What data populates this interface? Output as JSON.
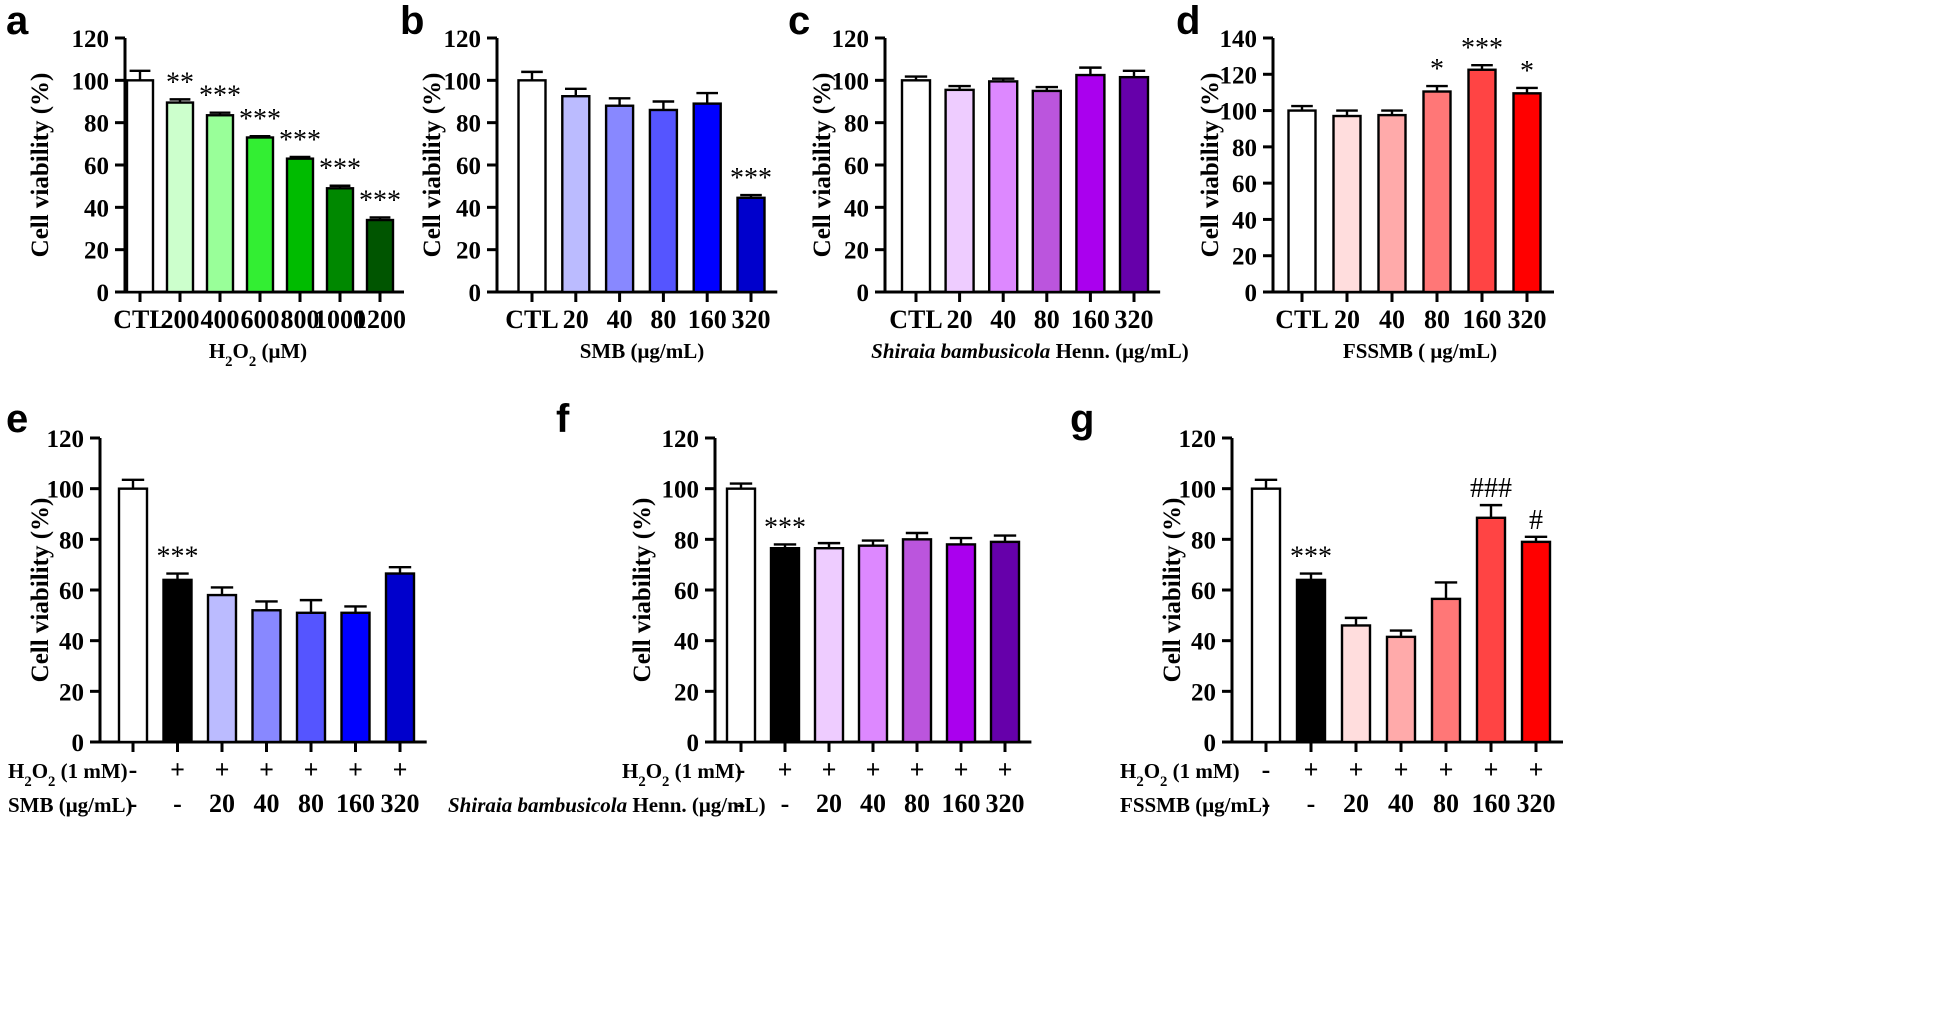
{
  "chart_data": [
    {
      "id": "a",
      "type": "bar",
      "letter": "a",
      "ylabel": "Cell viability (%)",
      "xlabel_parts": [
        {
          "t": "H"
        },
        {
          "t": "2",
          "sub": true
        },
        {
          "t": "O"
        },
        {
          "t": "2",
          "sub": true
        },
        {
          "t": " (μM)"
        }
      ],
      "ylim": [
        0,
        120
      ],
      "yticks": [
        0,
        20,
        40,
        60,
        80,
        100,
        120
      ],
      "categories": [
        "CTL",
        "200",
        "400",
        "600",
        "800",
        "1000",
        "1200"
      ],
      "values": [
        100,
        89.5,
        83.5,
        73,
        63,
        49,
        34
      ],
      "errors": [
        4.5,
        1.5,
        1.2,
        0.6,
        0.8,
        1.2,
        1.2
      ],
      "colors": [
        "#ffffff",
        "#ccffcc",
        "#99ff99",
        "#33ee33",
        "#00bb00",
        "#008800",
        "#005500"
      ],
      "significance": [
        "",
        "**",
        "***",
        "***",
        "***",
        "***",
        "***"
      ]
    },
    {
      "id": "b",
      "type": "bar",
      "letter": "b",
      "ylabel": "Cell viability (%)",
      "xlabel_parts": [
        {
          "t": "SMB (μg/mL)"
        }
      ],
      "ylim": [
        0,
        120
      ],
      "yticks": [
        0,
        20,
        40,
        60,
        80,
        100,
        120
      ],
      "categories": [
        "CTL",
        "20",
        "40",
        "80",
        "160",
        "320"
      ],
      "values": [
        100,
        92.5,
        88,
        86,
        89,
        44.5
      ],
      "errors": [
        4,
        3.5,
        3.5,
        4,
        5,
        1.3
      ],
      "colors": [
        "#ffffff",
        "#bbbbff",
        "#8888ff",
        "#5555ff",
        "#0000ff",
        "#0000cc"
      ],
      "significance": [
        "",
        "",
        "",
        "",
        "",
        "***"
      ]
    },
    {
      "id": "c",
      "type": "bar",
      "letter": "c",
      "ylabel": "Cell viability (%)",
      "xlabel_parts": [
        {
          "t": "Shiraia bambusicola",
          "italic": true
        },
        {
          "t": " Henn. (μg/mL)"
        }
      ],
      "ylim": [
        0,
        120
      ],
      "yticks": [
        0,
        20,
        40,
        60,
        80,
        100,
        120
      ],
      "categories": [
        "CTL",
        "20",
        "40",
        "80",
        "160",
        "320"
      ],
      "values": [
        100,
        95.5,
        99.5,
        95,
        102.5,
        101.5
      ],
      "errors": [
        1.8,
        1.8,
        1.3,
        1.8,
        3.5,
        3
      ],
      "colors": [
        "#ffffff",
        "#eeccff",
        "#dd88ff",
        "#bb55dd",
        "#aa00ee",
        "#6600aa"
      ],
      "significance": [
        "",
        "",
        "",
        "",
        "",
        ""
      ]
    },
    {
      "id": "d",
      "type": "bar",
      "letter": "d",
      "ylabel": "Cell viability (%)",
      "xlabel_parts": [
        {
          "t": "FSSMB ( μg/mL)"
        }
      ],
      "ylim": [
        0,
        140
      ],
      "yticks": [
        0,
        20,
        40,
        60,
        80,
        100,
        120,
        140
      ],
      "categories": [
        "CTL",
        "20",
        "40",
        "80",
        "160",
        "320"
      ],
      "values": [
        100,
        97,
        97.5,
        110.5,
        122.5,
        109.5
      ],
      "errors": [
        2.5,
        3,
        2.5,
        3,
        2.5,
        3
      ],
      "colors": [
        "#ffffff",
        "#ffdddd",
        "#ffaaaa",
        "#ff7777",
        "#ff4444",
        "#ff0000"
      ],
      "significance": [
        "",
        "",
        "",
        "*",
        "***",
        "*"
      ]
    },
    {
      "id": "e",
      "type": "bar",
      "letter": "e",
      "ylabel": "Cell viability (%)",
      "ylim": [
        0,
        120
      ],
      "yticks": [
        0,
        20,
        40,
        60,
        80,
        100,
        120
      ],
      "row1_label_parts": [
        {
          "t": "H"
        },
        {
          "t": "2",
          "sub": true
        },
        {
          "t": "O"
        },
        {
          "t": "2",
          "sub": true
        },
        {
          "t": " (1 mM)"
        }
      ],
      "row2_label_parts": [
        {
          "t": "SMB (μg/mL)"
        }
      ],
      "row1": [
        "-",
        "+",
        "+",
        "+",
        "+",
        "+",
        "+"
      ],
      "row2": [
        "-",
        "-",
        "20",
        "40",
        "80",
        "160",
        "320"
      ],
      "values": [
        100,
        64,
        58,
        52,
        51,
        51,
        66.5
      ],
      "errors": [
        3.5,
        2.5,
        3,
        3.5,
        5,
        2.5,
        2.5
      ],
      "colors": [
        "#ffffff",
        "#000000",
        "#bbbbff",
        "#8888ff",
        "#5555ff",
        "#0000ff",
        "#0000cc"
      ],
      "significance": [
        "",
        "***",
        "",
        "",
        "",
        "",
        ""
      ]
    },
    {
      "id": "f",
      "type": "bar",
      "letter": "f",
      "ylabel": "Cell viability (%)",
      "ylim": [
        0,
        120
      ],
      "yticks": [
        0,
        20,
        40,
        60,
        80,
        100,
        120
      ],
      "row1_label_parts": [
        {
          "t": "H"
        },
        {
          "t": "2",
          "sub": true
        },
        {
          "t": "O"
        },
        {
          "t": "2",
          "sub": true
        },
        {
          "t": " (1 mM)"
        }
      ],
      "row2_label_parts": [
        {
          "t": "Shiraia bambusicola",
          "italic": true
        },
        {
          "t": " Henn. (μg/mL)"
        }
      ],
      "row1": [
        "-",
        "+",
        "+",
        "+",
        "+",
        "+",
        "+"
      ],
      "row2": [
        "-",
        "-",
        "20",
        "40",
        "80",
        "160",
        "320"
      ],
      "values": [
        100,
        76.5,
        76.5,
        77.5,
        80,
        78,
        79
      ],
      "errors": [
        2,
        1.5,
        2,
        2,
        2.5,
        2.5,
        2.5
      ],
      "colors": [
        "#ffffff",
        "#000000",
        "#eeccff",
        "#dd88ff",
        "#bb55dd",
        "#aa00ee",
        "#6600aa"
      ],
      "significance": [
        "",
        "***",
        "",
        "",
        "",
        "",
        ""
      ]
    },
    {
      "id": "g",
      "type": "bar",
      "letter": "g",
      "ylabel": "Cell viability (%)",
      "ylim": [
        0,
        120
      ],
      "yticks": [
        0,
        20,
        40,
        60,
        80,
        100,
        120
      ],
      "row1_label_parts": [
        {
          "t": "H"
        },
        {
          "t": "2",
          "sub": true
        },
        {
          "t": "O"
        },
        {
          "t": "2",
          "sub": true
        },
        {
          "t": " (1 mM)"
        }
      ],
      "row2_label_parts": [
        {
          "t": "FSSMB (μg/mL)"
        }
      ],
      "row1": [
        "-",
        "+",
        "+",
        "+",
        "+",
        "+",
        "+"
      ],
      "row2": [
        "-",
        "-",
        "20",
        "40",
        "80",
        "160",
        "320"
      ],
      "values": [
        100,
        64,
        46,
        41.5,
        56.5,
        88.5,
        79
      ],
      "errors": [
        3.5,
        2.5,
        3,
        2.5,
        6.5,
        5,
        2
      ],
      "colors": [
        "#ffffff",
        "#000000",
        "#ffdddd",
        "#ffaaaa",
        "#ff7777",
        "#ff4444",
        "#ff0000"
      ],
      "significance": [
        "",
        "***",
        "",
        "",
        "",
        "###",
        "#"
      ]
    }
  ]
}
